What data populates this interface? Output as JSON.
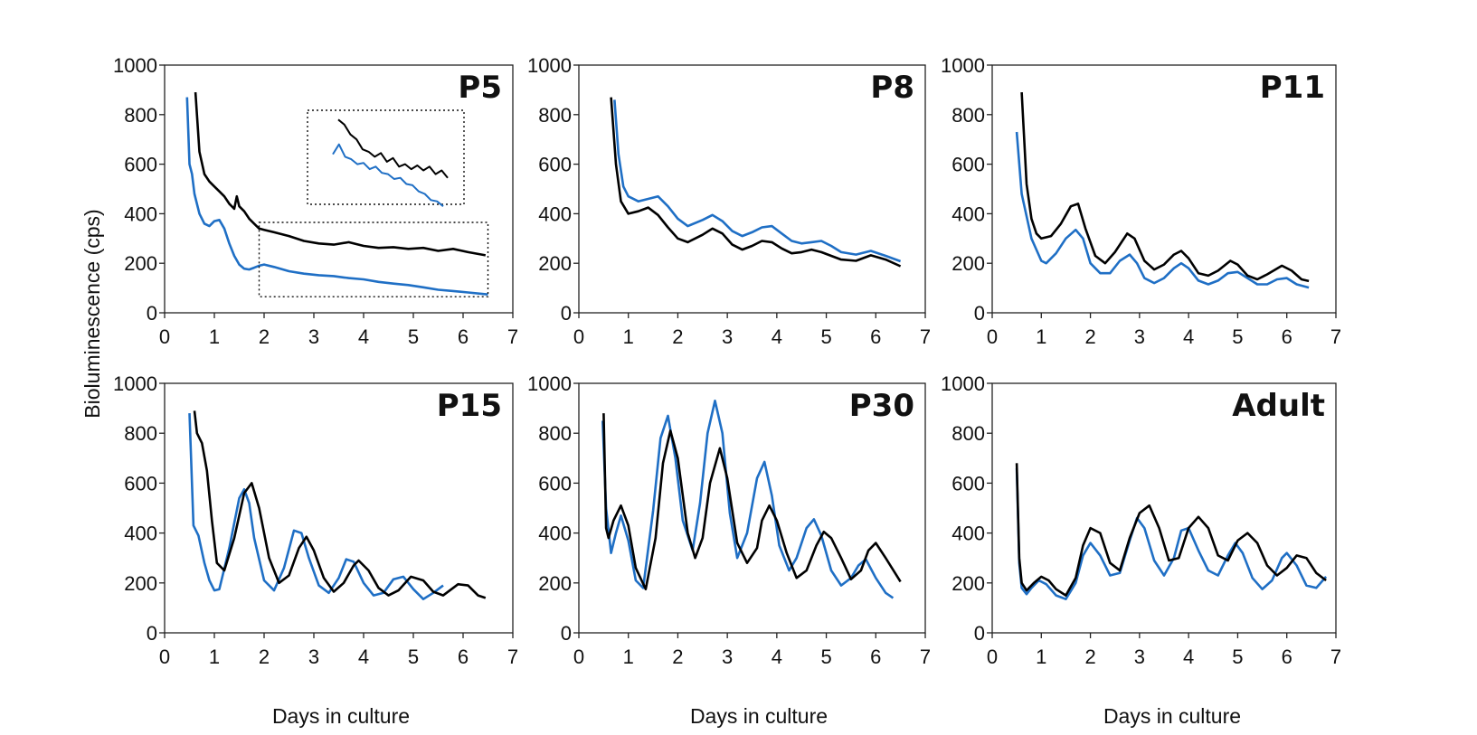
{
  "figure": {
    "ylabel": "Bioluminescence  (cps)",
    "xlabel": "Days in culture",
    "colors": {
      "series_a": "#000000",
      "series_b": "#1f6fc5",
      "frame": "#222222"
    }
  },
  "chart_data": [
    {
      "type": "line",
      "title": "P5",
      "xlabel": "",
      "ylabel": "Bioluminescence  (cps)",
      "xlim": [
        0,
        7
      ],
      "ylim": [
        0,
        1000
      ],
      "xticks": [
        "0",
        "1",
        "2",
        "3",
        "4",
        "5",
        "6",
        "7"
      ],
      "yticks": [
        "0",
        "200",
        "400",
        "600",
        "800",
        "1000"
      ],
      "series": [
        {
          "name": "black",
          "color": "#000000",
          "x": [
            0.62,
            0.7,
            0.8,
            0.9,
            1.0,
            1.1,
            1.2,
            1.3,
            1.4,
            1.45,
            1.5,
            1.6,
            1.7,
            1.8,
            1.9,
            2.0,
            2.2,
            2.5,
            2.8,
            3.1,
            3.4,
            3.7,
            4.0,
            4.3,
            4.6,
            4.9,
            5.2,
            5.5,
            5.8,
            6.1,
            6.45
          ],
          "y": [
            890,
            650,
            560,
            530,
            510,
            490,
            470,
            440,
            420,
            470,
            430,
            410,
            380,
            360,
            340,
            335,
            325,
            310,
            290,
            280,
            275,
            285,
            270,
            262,
            265,
            258,
            262,
            250,
            258,
            245,
            232
          ]
        },
        {
          "name": "blue",
          "color": "#1f6fc5",
          "x": [
            0.45,
            0.5,
            0.55,
            0.6,
            0.7,
            0.8,
            0.9,
            1.0,
            1.1,
            1.2,
            1.3,
            1.4,
            1.5,
            1.6,
            1.7,
            1.8,
            1.9,
            2.0,
            2.2,
            2.5,
            2.8,
            3.1,
            3.4,
            3.7,
            4.0,
            4.3,
            4.6,
            4.9,
            5.2,
            5.5,
            5.8,
            6.1,
            6.5
          ],
          "y": [
            870,
            600,
            560,
            480,
            400,
            360,
            350,
            370,
            375,
            340,
            280,
            230,
            195,
            178,
            175,
            182,
            190,
            195,
            185,
            168,
            158,
            152,
            148,
            140,
            135,
            125,
            118,
            112,
            103,
            93,
            88,
            82,
            74
          ]
        }
      ],
      "inset": {
        "black_y": [
          780,
          760,
          720,
          700,
          660,
          650,
          630,
          645,
          610,
          625,
          590,
          600,
          580,
          595,
          575,
          590,
          560,
          575,
          545
        ],
        "blue_y": [
          640,
          680,
          630,
          620,
          600,
          605,
          580,
          590,
          565,
          560,
          540,
          545,
          520,
          515,
          490,
          480,
          455,
          450,
          430
        ]
      }
    },
    {
      "type": "line",
      "title": "P8",
      "xlabel": "",
      "ylabel": "",
      "xlim": [
        0,
        7
      ],
      "ylim": [
        0,
        1000
      ],
      "xticks": [
        "0",
        "1",
        "2",
        "3",
        "4",
        "5",
        "6",
        "7"
      ],
      "yticks": [
        "0",
        "200",
        "400",
        "600",
        "800",
        "1000"
      ],
      "series": [
        {
          "name": "black",
          "color": "#000000",
          "x": [
            0.65,
            0.75,
            0.85,
            1.0,
            1.2,
            1.4,
            1.6,
            1.8,
            2.0,
            2.2,
            2.5,
            2.7,
            2.9,
            3.1,
            3.3,
            3.5,
            3.7,
            3.9,
            4.1,
            4.3,
            4.5,
            4.7,
            4.9,
            5.1,
            5.3,
            5.6,
            5.9,
            6.2,
            6.5
          ],
          "y": [
            870,
            600,
            450,
            400,
            410,
            425,
            395,
            345,
            300,
            285,
            315,
            340,
            320,
            275,
            255,
            270,
            290,
            285,
            260,
            240,
            245,
            255,
            245,
            230,
            215,
            210,
            232,
            215,
            188
          ]
        },
        {
          "name": "blue",
          "color": "#1f6fc5",
          "x": [
            0.72,
            0.8,
            0.9,
            1.0,
            1.2,
            1.4,
            1.6,
            1.8,
            2.0,
            2.2,
            2.5,
            2.7,
            2.9,
            3.1,
            3.3,
            3.5,
            3.7,
            3.9,
            4.1,
            4.3,
            4.5,
            4.7,
            4.9,
            5.1,
            5.3,
            5.6,
            5.9,
            6.2,
            6.5
          ],
          "y": [
            860,
            640,
            510,
            470,
            450,
            460,
            470,
            430,
            380,
            350,
            375,
            395,
            370,
            330,
            310,
            325,
            345,
            350,
            320,
            290,
            280,
            285,
            290,
            270,
            245,
            235,
            250,
            230,
            208
          ]
        }
      ]
    },
    {
      "type": "line",
      "title": "P11",
      "xlabel": "",
      "ylabel": "",
      "xlim": [
        0,
        7
      ],
      "ylim": [
        0,
        1000
      ],
      "xticks": [
        "0",
        "1",
        "2",
        "3",
        "4",
        "5",
        "6",
        "7"
      ],
      "yticks": [
        "0",
        "200",
        "400",
        "600",
        "800",
        "1000"
      ],
      "series": [
        {
          "name": "black",
          "color": "#000000",
          "x": [
            0.6,
            0.7,
            0.8,
            0.9,
            1.0,
            1.2,
            1.4,
            1.6,
            1.75,
            1.9,
            2.1,
            2.3,
            2.5,
            2.75,
            2.9,
            3.1,
            3.3,
            3.5,
            3.7,
            3.85,
            4.0,
            4.2,
            4.4,
            4.6,
            4.85,
            5.0,
            5.2,
            5.4,
            5.6,
            5.9,
            6.1,
            6.3,
            6.45
          ],
          "y": [
            890,
            520,
            380,
            320,
            300,
            310,
            360,
            430,
            440,
            340,
            230,
            200,
            245,
            320,
            300,
            210,
            175,
            195,
            235,
            250,
            220,
            160,
            150,
            170,
            210,
            195,
            150,
            135,
            155,
            190,
            170,
            135,
            128
          ]
        },
        {
          "name": "blue",
          "color": "#1f6fc5",
          "x": [
            0.5,
            0.6,
            0.7,
            0.8,
            1.0,
            1.1,
            1.3,
            1.5,
            1.7,
            1.85,
            2.0,
            2.2,
            2.4,
            2.6,
            2.8,
            2.95,
            3.1,
            3.3,
            3.5,
            3.7,
            3.85,
            4.0,
            4.2,
            4.4,
            4.6,
            4.8,
            5.0,
            5.2,
            5.4,
            5.6,
            5.8,
            6.0,
            6.2,
            6.45
          ],
          "y": [
            730,
            480,
            390,
            300,
            210,
            200,
            240,
            300,
            335,
            300,
            200,
            160,
            160,
            210,
            235,
            200,
            140,
            120,
            140,
            180,
            200,
            180,
            130,
            115,
            130,
            160,
            165,
            140,
            115,
            115,
            135,
            140,
            115,
            102
          ]
        }
      ]
    },
    {
      "type": "line",
      "title": "P15",
      "xlabel": "Days in culture",
      "ylabel": "",
      "xlim": [
        0,
        7
      ],
      "ylim": [
        0,
        1000
      ],
      "xticks": [
        "0",
        "1",
        "2",
        "3",
        "4",
        "5",
        "6",
        "7"
      ],
      "yticks": [
        "0",
        "200",
        "400",
        "600",
        "800",
        "1000"
      ],
      "series": [
        {
          "name": "black",
          "color": "#000000",
          "x": [
            0.6,
            0.65,
            0.75,
            0.85,
            0.95,
            1.05,
            1.2,
            1.4,
            1.6,
            1.75,
            1.9,
            2.1,
            2.3,
            2.5,
            2.7,
            2.85,
            3.0,
            3.2,
            3.4,
            3.6,
            3.8,
            3.9,
            4.1,
            4.3,
            4.5,
            4.7,
            4.95,
            5.2,
            5.4,
            5.6,
            5.9,
            6.1,
            6.3,
            6.45
          ],
          "y": [
            890,
            800,
            760,
            650,
            450,
            280,
            250,
            380,
            560,
            600,
            500,
            300,
            200,
            230,
            340,
            385,
            330,
            220,
            165,
            200,
            270,
            290,
            250,
            180,
            150,
            170,
            225,
            210,
            165,
            150,
            195,
            190,
            150,
            140
          ]
        },
        {
          "name": "blue",
          "color": "#1f6fc5",
          "x": [
            0.5,
            0.58,
            0.68,
            0.8,
            0.9,
            1.0,
            1.1,
            1.3,
            1.5,
            1.6,
            1.7,
            1.8,
            2.0,
            2.2,
            2.4,
            2.6,
            2.75,
            2.9,
            3.1,
            3.3,
            3.5,
            3.65,
            3.8,
            4.0,
            4.2,
            4.4,
            4.6,
            4.8,
            5.0,
            5.2,
            5.4,
            5.6
          ],
          "y": [
            880,
            430,
            390,
            280,
            210,
            170,
            175,
            340,
            540,
            575,
            520,
            380,
            210,
            170,
            260,
            410,
            400,
            300,
            190,
            160,
            220,
            295,
            285,
            200,
            150,
            160,
            215,
            225,
            175,
            135,
            160,
            190
          ]
        }
      ]
    },
    {
      "type": "line",
      "title": "P30",
      "xlabel": "Days in culture",
      "ylabel": "",
      "xlim": [
        0,
        7
      ],
      "ylim": [
        0,
        1000
      ],
      "xticks": [
        "0",
        "1",
        "2",
        "3",
        "4",
        "5",
        "6",
        "7"
      ],
      "yticks": [
        "0",
        "200",
        "400",
        "600",
        "800",
        "1000"
      ],
      "series": [
        {
          "name": "black",
          "color": "#000000",
          "x": [
            0.5,
            0.55,
            0.6,
            0.7,
            0.85,
            1.0,
            1.15,
            1.35,
            1.55,
            1.7,
            1.85,
            2.0,
            2.2,
            2.35,
            2.5,
            2.65,
            2.85,
            3.0,
            3.2,
            3.4,
            3.6,
            3.7,
            3.85,
            4.0,
            4.2,
            4.4,
            4.6,
            4.8,
            4.95,
            5.1,
            5.3,
            5.5,
            5.7,
            5.85,
            6.0,
            6.2,
            6.5
          ],
          "y": [
            880,
            420,
            380,
            450,
            510,
            430,
            260,
            175,
            380,
            680,
            810,
            700,
            400,
            300,
            380,
            600,
            740,
            620,
            360,
            280,
            340,
            450,
            510,
            450,
            320,
            220,
            250,
            350,
            405,
            380,
            300,
            215,
            250,
            330,
            360,
            300,
            205
          ]
        },
        {
          "name": "blue",
          "color": "#1f6fc5",
          "x": [
            0.48,
            0.55,
            0.65,
            0.75,
            0.85,
            1.0,
            1.15,
            1.3,
            1.5,
            1.65,
            1.8,
            1.95,
            2.1,
            2.3,
            2.45,
            2.6,
            2.75,
            2.9,
            3.05,
            3.2,
            3.4,
            3.6,
            3.75,
            3.9,
            4.05,
            4.25,
            4.4,
            4.6,
            4.75,
            4.9,
            5.1,
            5.3,
            5.5,
            5.65,
            5.8,
            6.0,
            6.2,
            6.35
          ],
          "y": [
            850,
            500,
            320,
            400,
            470,
            370,
            210,
            180,
            490,
            780,
            870,
            700,
            450,
            330,
            520,
            800,
            930,
            800,
            480,
            300,
            400,
            620,
            685,
            550,
            350,
            250,
            300,
            420,
            455,
            390,
            250,
            190,
            220,
            270,
            295,
            220,
            160,
            140
          ]
        }
      ]
    },
    {
      "type": "line",
      "title": "Adult",
      "xlabel": "Days in culture",
      "ylabel": "",
      "xlim": [
        0,
        7
      ],
      "ylim": [
        0,
        1000
      ],
      "xticks": [
        "0",
        "1",
        "2",
        "3",
        "4",
        "5",
        "6",
        "7"
      ],
      "yticks": [
        "0",
        "200",
        "400",
        "600",
        "800",
        "1000"
      ],
      "series": [
        {
          "name": "black",
          "color": "#000000",
          "x": [
            0.5,
            0.55,
            0.6,
            0.7,
            0.85,
            1.0,
            1.15,
            1.3,
            1.5,
            1.7,
            1.85,
            2.0,
            2.2,
            2.4,
            2.6,
            2.8,
            3.0,
            3.2,
            3.4,
            3.6,
            3.8,
            4.0,
            4.2,
            4.4,
            4.6,
            4.8,
            5.0,
            5.2,
            5.4,
            5.6,
            5.8,
            6.0,
            6.2,
            6.4,
            6.6,
            6.8
          ],
          "y": [
            680,
            300,
            200,
            170,
            200,
            225,
            210,
            175,
            150,
            220,
            350,
            420,
            400,
            280,
            250,
            380,
            480,
            510,
            420,
            290,
            300,
            420,
            465,
            420,
            310,
            290,
            370,
            400,
            360,
            270,
            230,
            260,
            310,
            300,
            240,
            210
          ]
        },
        {
          "name": "blue",
          "color": "#1f6fc5",
          "x": [
            0.5,
            0.55,
            0.6,
            0.7,
            0.8,
            0.95,
            1.1,
            1.3,
            1.5,
            1.7,
            1.85,
            2.0,
            2.2,
            2.4,
            2.6,
            2.8,
            2.95,
            3.1,
            3.3,
            3.5,
            3.7,
            3.85,
            4.0,
            4.2,
            4.4,
            4.6,
            4.8,
            4.95,
            5.1,
            5.3,
            5.5,
            5.7,
            5.9,
            6.0,
            6.2,
            6.4,
            6.6,
            6.8
          ],
          "y": [
            660,
            280,
            180,
            155,
            180,
            210,
            195,
            150,
            135,
            200,
            310,
            360,
            310,
            230,
            240,
            370,
            460,
            420,
            290,
            230,
            300,
            410,
            420,
            330,
            250,
            230,
            310,
            360,
            320,
            220,
            175,
            210,
            300,
            320,
            270,
            190,
            180,
            225
          ]
        }
      ]
    }
  ]
}
